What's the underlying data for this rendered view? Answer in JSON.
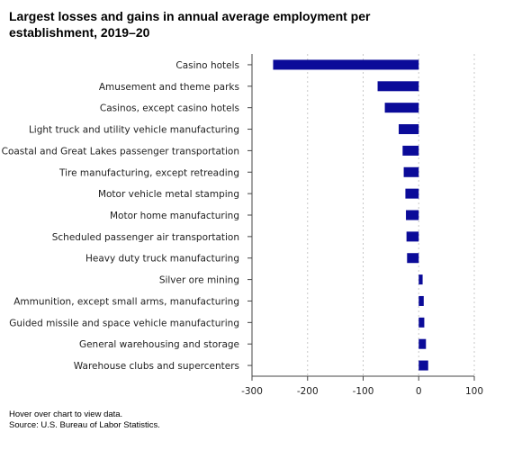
{
  "notes": {
    "hover": "Hover over chart to view data.",
    "source": "Source: U.S. Bureau of Labor Statistics."
  },
  "chart_data": {
    "type": "bar",
    "orientation": "horizontal",
    "title": "Largest losses and gains in annual average employment per establishment, 2019–20",
    "categories": [
      "Casino hotels",
      "Amusement and theme parks",
      "Casinos, except casino hotels",
      "Light truck and utility vehicle manufacturing",
      "Coastal and Great Lakes passenger transportation",
      "Tire manufacturing, except retreading",
      "Motor vehicle metal stamping",
      "Motor home manufacturing",
      "Scheduled passenger air transportation",
      "Heavy duty truck manufacturing",
      "Silver ore mining",
      "Ammunition, except small arms, manufacturing",
      "Guided missile and space vehicle manufacturing",
      "General warehousing and storage",
      "Warehouse clubs and supercenters"
    ],
    "values": [
      -262,
      -74,
      -61,
      -36,
      -29,
      -27,
      -24,
      -23,
      -22,
      -21,
      7,
      9,
      10,
      13,
      17
    ],
    "xlim": [
      -300,
      100
    ],
    "xticks": [
      -300,
      -200,
      -100,
      0,
      100
    ],
    "grid": true,
    "bar_color": "#0b0b99",
    "grid_color": "#c8c8c8",
    "axis_color": "#444444"
  }
}
